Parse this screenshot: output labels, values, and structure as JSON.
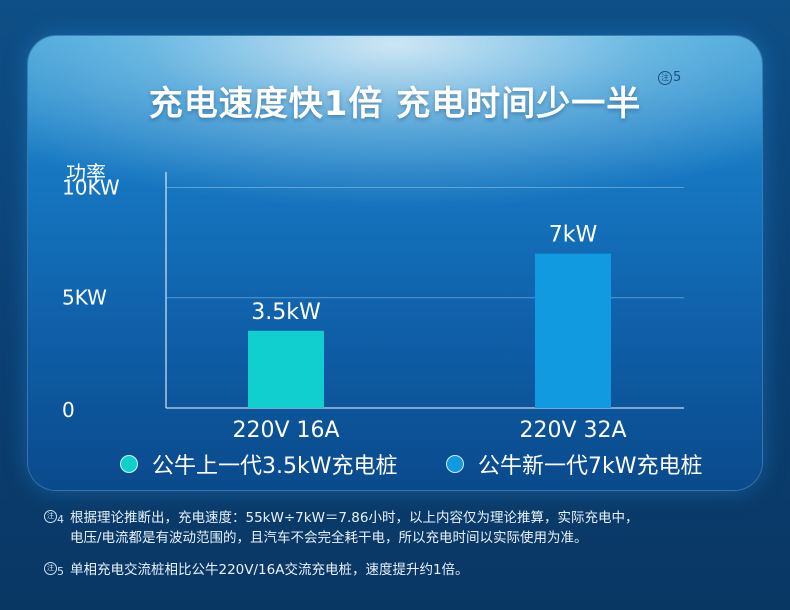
{
  "title": "充电速度快1倍 充电时间少一半",
  "title_note": "5",
  "title_note_mark": "注",
  "chart_data": {
    "type": "bar",
    "ylabel": "功率",
    "ytick_labels": [
      "0",
      "5KW",
      "10KW"
    ],
    "yticks": [
      0,
      5,
      10
    ],
    "ylim": [
      0,
      10.7
    ],
    "categories": [
      "220V 16A",
      "220V 32A"
    ],
    "values": [
      3.5,
      7
    ],
    "data_labels": [
      "3.5kW",
      "7kW"
    ],
    "colors": [
      "#12cfcf",
      "#119ae0"
    ],
    "legend": [
      "公牛上一代3.5kW充电桩",
      "公牛新一代7kW充电桩"
    ],
    "grid": true
  },
  "notes": [
    {
      "mark": "注",
      "num": "4",
      "line1": "根据理论推断出，充电速度：55kW÷7kW＝7.86小时，以上内容仅为理论推算，实际充电中，",
      "line2": "电压/电流都是有波动范围的，且汽车不会完全耗干电，所以充电时间以实际使用为准。"
    },
    {
      "mark": "注",
      "num": "5",
      "line1": "单相充电交流桩相比公牛220V/16A交流充电桩，速度提升约1倍。",
      "line2": ""
    }
  ]
}
